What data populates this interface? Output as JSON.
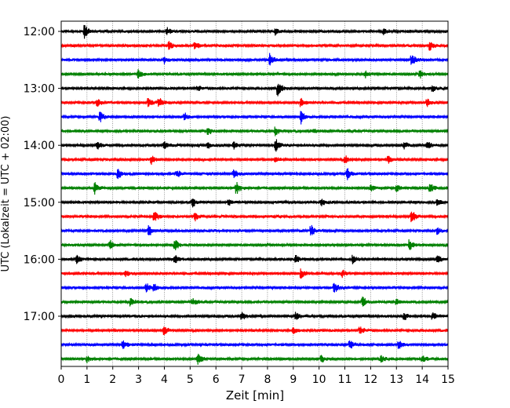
{
  "chart_data": {
    "type": "line",
    "subtype": "helicorder",
    "title": "",
    "xlabel": "Zeit  [min]",
    "ylabel": "UTC (Lokalzeit = UTC + 02:00)",
    "xlim": [
      0,
      15
    ],
    "x_ticks": [
      "0",
      "1",
      "2",
      "3",
      "4",
      "5",
      "6",
      "7",
      "8",
      "9",
      "10",
      "11",
      "12",
      "13",
      "14",
      "15"
    ],
    "y_ticks": [
      "12:00",
      "13:00",
      "14:00",
      "15:00",
      "16:00",
      "17:00"
    ],
    "grid": "vertical dotted at each minute",
    "trace_minutes": 15,
    "color_cycle": [
      "#000000",
      "#ff0000",
      "#0000ff",
      "#008000"
    ],
    "rows": [
      {
        "start": "12:00",
        "events": [
          [
            0.9,
            1.0
          ],
          [
            4.1,
            0.6
          ],
          [
            8.3,
            0.5
          ],
          [
            12.5,
            0.5
          ]
        ]
      },
      {
        "start": "12:15",
        "events": [
          [
            4.2,
            0.6
          ],
          [
            5.2,
            0.5
          ],
          [
            14.3,
            0.7
          ]
        ]
      },
      {
        "start": "12:30",
        "events": [
          [
            4.0,
            0.5
          ],
          [
            8.1,
            0.9
          ],
          [
            13.6,
            0.8
          ]
        ]
      },
      {
        "start": "12:45",
        "events": [
          [
            3.0,
            0.6
          ],
          [
            11.8,
            0.5
          ],
          [
            13.9,
            0.6
          ]
        ]
      },
      {
        "start": "13:00",
        "events": [
          [
            5.3,
            0.4
          ],
          [
            8.4,
            1.0
          ],
          [
            14.4,
            0.4
          ]
        ]
      },
      {
        "start": "13:15",
        "events": [
          [
            1.4,
            0.6
          ],
          [
            3.4,
            0.7
          ],
          [
            3.8,
            0.7
          ],
          [
            9.3,
            0.6
          ],
          [
            14.2,
            0.5
          ]
        ]
      },
      {
        "start": "13:30",
        "events": [
          [
            1.5,
            0.8
          ],
          [
            4.8,
            0.5
          ],
          [
            9.3,
            1.0
          ]
        ]
      },
      {
        "start": "13:45",
        "events": [
          [
            5.7,
            0.5
          ],
          [
            8.3,
            0.6
          ],
          [
            9.8,
            0.4
          ]
        ]
      },
      {
        "start": "14:00",
        "events": [
          [
            1.4,
            0.6
          ],
          [
            4.0,
            0.5
          ],
          [
            5.7,
            0.5
          ],
          [
            6.7,
            0.5
          ],
          [
            8.3,
            1.0
          ],
          [
            13.3,
            0.5
          ],
          [
            14.2,
            0.6
          ]
        ]
      },
      {
        "start": "14:15",
        "events": [
          [
            3.5,
            0.6
          ],
          [
            8.3,
            0.5
          ],
          [
            11.0,
            0.6
          ],
          [
            12.7,
            0.5
          ]
        ]
      },
      {
        "start": "14:30",
        "events": [
          [
            2.2,
            0.9
          ],
          [
            4.5,
            0.5
          ],
          [
            6.7,
            0.6
          ],
          [
            11.1,
            0.8
          ]
        ]
      },
      {
        "start": "14:45",
        "events": [
          [
            1.3,
            0.8
          ],
          [
            6.8,
            0.9
          ],
          [
            12.0,
            0.5
          ],
          [
            13.0,
            0.5
          ],
          [
            14.3,
            0.8
          ]
        ]
      },
      {
        "start": "15:00",
        "events": [
          [
            5.1,
            0.6
          ],
          [
            6.5,
            0.5
          ],
          [
            10.1,
            0.5
          ],
          [
            14.6,
            0.5
          ]
        ]
      },
      {
        "start": "15:15",
        "events": [
          [
            3.6,
            0.9
          ],
          [
            5.2,
            0.6
          ],
          [
            13.6,
            0.9
          ]
        ]
      },
      {
        "start": "15:30",
        "events": [
          [
            3.4,
            0.7
          ],
          [
            9.7,
            0.8
          ],
          [
            14.6,
            0.5
          ]
        ]
      },
      {
        "start": "15:45",
        "events": [
          [
            1.9,
            0.6
          ],
          [
            4.4,
            1.0
          ],
          [
            13.5,
            0.8
          ]
        ]
      },
      {
        "start": "16:00",
        "events": [
          [
            0.6,
            0.6
          ],
          [
            4.4,
            0.7
          ],
          [
            9.1,
            0.6
          ],
          [
            11.3,
            0.6
          ],
          [
            14.6,
            0.5
          ]
        ]
      },
      {
        "start": "16:15",
        "events": [
          [
            2.5,
            0.5
          ],
          [
            9.3,
            0.7
          ],
          [
            10.9,
            0.5
          ]
        ]
      },
      {
        "start": "16:30",
        "events": [
          [
            3.3,
            0.7
          ],
          [
            3.6,
            0.6
          ],
          [
            10.6,
            0.8
          ]
        ]
      },
      {
        "start": "16:45",
        "events": [
          [
            2.7,
            0.6
          ],
          [
            5.1,
            0.5
          ],
          [
            11.7,
            0.7
          ],
          [
            13.0,
            0.5
          ]
        ]
      },
      {
        "start": "17:00",
        "events": [
          [
            7.0,
            0.7
          ],
          [
            9.1,
            0.6
          ],
          [
            13.3,
            0.6
          ],
          [
            14.4,
            0.5
          ]
        ]
      },
      {
        "start": "17:15",
        "events": [
          [
            4.0,
            0.6
          ],
          [
            9.0,
            0.5
          ],
          [
            11.6,
            0.6
          ]
        ]
      },
      {
        "start": "17:30",
        "events": [
          [
            2.4,
            0.7
          ],
          [
            11.2,
            0.7
          ],
          [
            13.1,
            0.6
          ]
        ]
      },
      {
        "start": "17:45",
        "events": [
          [
            1.0,
            0.5
          ],
          [
            5.3,
            0.8
          ],
          [
            10.1,
            0.5
          ],
          [
            12.4,
            0.5
          ],
          [
            14.0,
            0.5
          ]
        ]
      }
    ]
  }
}
